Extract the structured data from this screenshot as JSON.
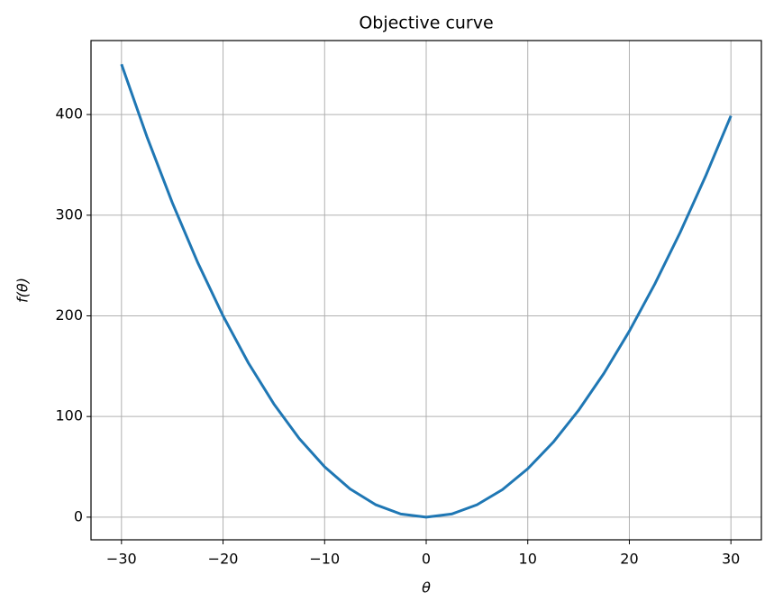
{
  "chart_data": {
    "type": "line",
    "title": "Objective curve",
    "x_label": "θ",
    "y_label": "f(θ)",
    "x": [
      -30,
      -27.5,
      -25,
      -22.5,
      -20,
      -17.5,
      -15,
      -12.5,
      -10,
      -7.5,
      -5,
      -2.5,
      0,
      2.5,
      5,
      7.5,
      10,
      12.5,
      15,
      17.5,
      20,
      22.5,
      25,
      27.5,
      30
    ],
    "series": [
      {
        "color": "#1f77b4",
        "values": [
          450,
          378.1,
          312.5,
          253.1,
          200,
          153.1,
          112.5,
          78.1,
          50,
          28.1,
          12.5,
          3.1,
          0,
          3.1,
          12.3,
          27.3,
          48.1,
          74.4,
          106.1,
          142.9,
          184.8,
          231.5,
          282.8,
          338.6,
          398.7
        ]
      }
    ],
    "xlim": [
      -33,
      33
    ],
    "ylim": [
      -22.5,
      473.5
    ],
    "xticks": [
      {
        "value": -30,
        "label": "−30"
      },
      {
        "value": -20,
        "label": "−20"
      },
      {
        "value": -10,
        "label": "−10"
      },
      0,
      10,
      20,
      30
    ],
    "yticks": [
      0,
      100,
      200,
      300,
      400
    ],
    "grid": true
  }
}
